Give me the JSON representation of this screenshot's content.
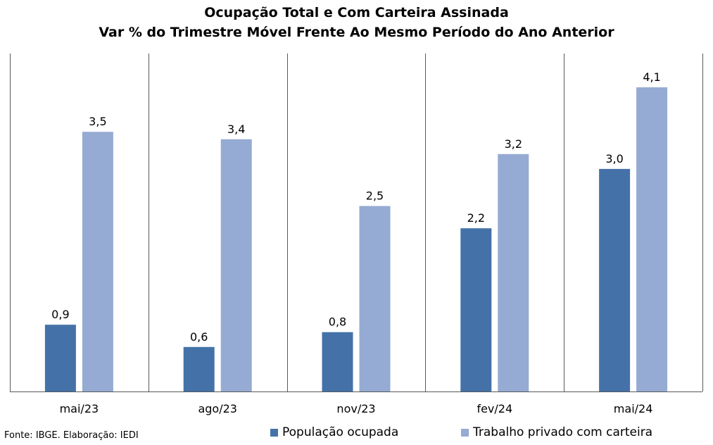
{
  "chart_data": {
    "type": "bar",
    "title": "Ocupação Total e Com Carteira Assinada",
    "subtitle": "Var % do Trimestre Móvel Frente Ao Mesmo Período do Ano Anterior",
    "categories": [
      "mai/23",
      "ago/23",
      "nov/23",
      "fev/24",
      "mai/24"
    ],
    "series": [
      {
        "name": "População ocupada",
        "color": "#4472A8",
        "values": [
          0.9,
          0.6,
          0.8,
          2.2,
          3.0
        ],
        "labels": [
          "0,9",
          "0,6",
          "0,8",
          "2,2",
          "3,0"
        ]
      },
      {
        "name": "Trabalho privado com carteira",
        "color": "#95ABD3",
        "values": [
          3.5,
          3.4,
          2.5,
          3.2,
          4.1
        ],
        "labels": [
          "3,5",
          "3,4",
          "2,5",
          "3,2",
          "4,1"
        ]
      }
    ],
    "ylim": [
      0,
      4.5
    ],
    "grid": false,
    "legend_position": "bottom"
  },
  "source": "Fonte: IBGE. Elaboração: IEDI"
}
